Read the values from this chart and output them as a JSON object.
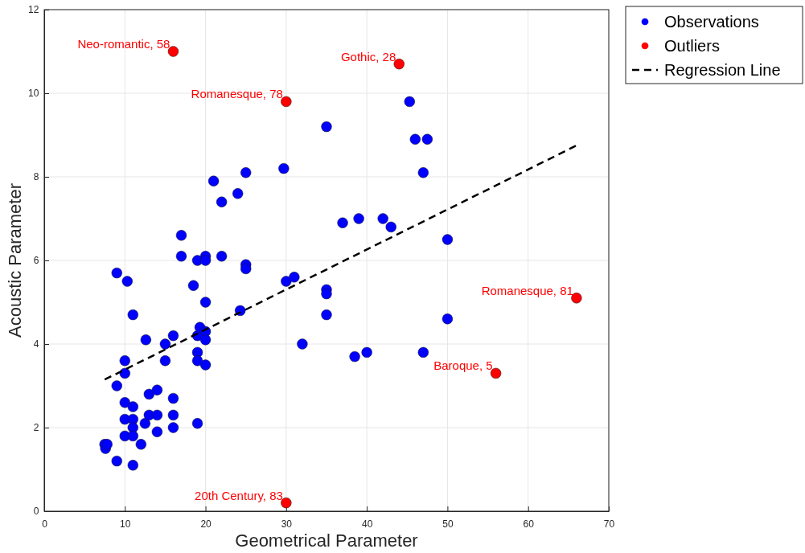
{
  "chart_data": {
    "type": "scatter",
    "xlabel": "Geometrical Parameter",
    "ylabel": "Acoustic Parameter",
    "xlim": [
      0,
      70
    ],
    "ylim": [
      0,
      12
    ],
    "xticks": [
      0,
      10,
      20,
      30,
      40,
      50,
      60,
      70
    ],
    "yticks": [
      0,
      2,
      4,
      6,
      8,
      10,
      12
    ],
    "grid": true,
    "legend": "top right",
    "marker": "circle",
    "series": [
      {
        "name": "Observations",
        "color": "#0000ff",
        "x": [
          7.5,
          7.6,
          7.8,
          9,
          9,
          9,
          10,
          10,
          10,
          10,
          10,
          10.3,
          11,
          11,
          11,
          11,
          11,
          11,
          12,
          12.5,
          12.6,
          13,
          13,
          14,
          14,
          14,
          15,
          15,
          16,
          16,
          16,
          16,
          17,
          17,
          18.5,
          19,
          19,
          19,
          19,
          19,
          19.3,
          20,
          20,
          20,
          20,
          20,
          20,
          21,
          22,
          22,
          24,
          24.3,
          25,
          25,
          25,
          29.7,
          30,
          31,
          32,
          35,
          35,
          35,
          35,
          37,
          38.5,
          39,
          40,
          42,
          43,
          45.3,
          46,
          47.5,
          47,
          47,
          50,
          50
        ],
        "values": [
          1.6,
          1.5,
          1.6,
          1.2,
          3.0,
          5.7,
          3.6,
          3.3,
          2.6,
          2.2,
          1.8,
          5.5,
          4.7,
          2.5,
          2.2,
          2.0,
          1.8,
          1.1,
          1.6,
          2.1,
          4.1,
          2.8,
          2.3,
          2.9,
          2.3,
          1.9,
          4.0,
          3.6,
          4.2,
          2.7,
          2.3,
          2.0,
          6.6,
          6.1,
          5.4,
          6.0,
          4.2,
          3.8,
          3.6,
          2.1,
          4.4,
          6.1,
          6.0,
          5.0,
          4.3,
          4.1,
          3.5,
          7.9,
          7.4,
          6.1,
          7.6,
          4.8,
          8.1,
          5.9,
          5.8,
          8.2,
          5.5,
          5.6,
          4.0,
          9.2,
          5.3,
          5.2,
          4.7,
          6.9,
          3.7,
          7.0,
          3.8,
          7.0,
          6.8,
          9.8,
          8.9,
          8.9,
          8.1,
          3.8,
          6.5,
          4.6
        ]
      },
      {
        "name": "Outliers",
        "color": "#ff0000",
        "x": [
          16,
          44,
          30,
          66,
          56,
          30
        ],
        "values": [
          11.0,
          10.7,
          9.8,
          5.1,
          3.3,
          0.2
        ]
      },
      {
        "name": "Regression Line",
        "type": "line",
        "color": "#000000",
        "line_style": "dashed",
        "marker": "none",
        "x": [
          7.5,
          66
        ],
        "values": [
          3.15,
          8.75
        ]
      }
    ],
    "annotations": [
      {
        "text": "Neo-romantic, 58",
        "x": 16,
        "y": 11.0
      },
      {
        "text": "Gothic, 28",
        "x": 44,
        "y": 10.7
      },
      {
        "text": "Romanesque, 78",
        "x": 30,
        "y": 9.8
      },
      {
        "text": "Romanesque, 81",
        "x": 66,
        "y": 5.1
      },
      {
        "text": "Baroque, 5",
        "x": 56,
        "y": 3.3
      },
      {
        "text": "20th Century, 83",
        "x": 30,
        "y": 0.2
      }
    ]
  }
}
